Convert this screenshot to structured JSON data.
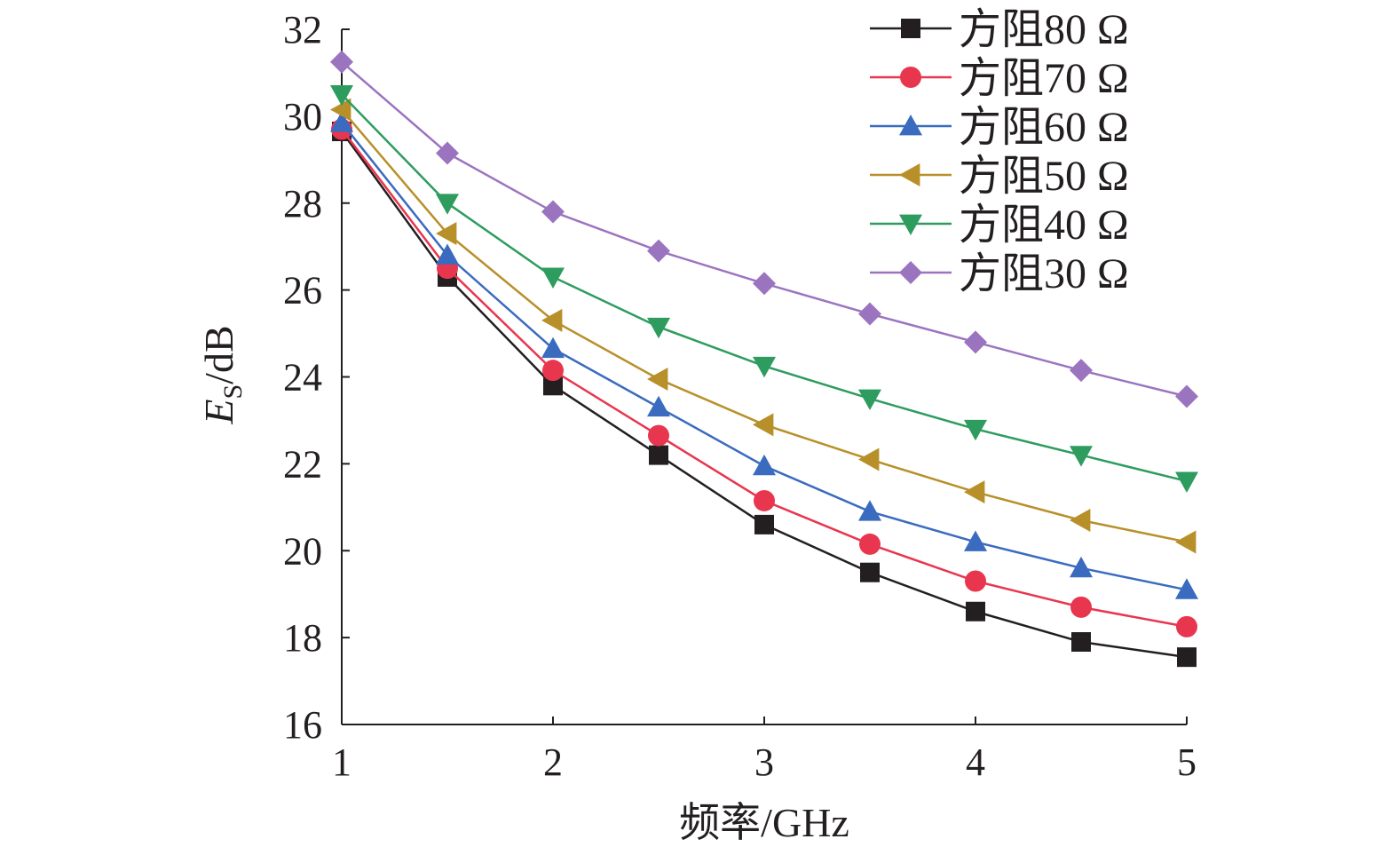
{
  "chart_data": {
    "type": "line",
    "xlabel": "频率/GHz",
    "ylabel": {
      "main": "E",
      "sub": "S",
      "rest": "/dB"
    },
    "xlim": [
      1,
      5
    ],
    "ylim": [
      16,
      32
    ],
    "xticks": [
      1,
      2,
      3,
      4,
      5
    ],
    "yticks": [
      16,
      18,
      20,
      22,
      24,
      26,
      28,
      30,
      32
    ],
    "grid": false,
    "legend_position": "top-right",
    "x": [
      1,
      1.5,
      2,
      2.5,
      3,
      3.5,
      4,
      4.5,
      5
    ],
    "series": [
      {
        "name": "方阻80 Ω",
        "color": "#231f20",
        "marker": "square",
        "values": [
          29.65,
          26.3,
          23.8,
          22.2,
          20.6,
          19.5,
          18.6,
          17.9,
          17.55
        ]
      },
      {
        "name": "方阻70 Ω",
        "color": "#e8364f",
        "marker": "circle",
        "values": [
          29.7,
          26.5,
          24.15,
          22.65,
          21.15,
          20.15,
          19.3,
          18.7,
          18.25
        ]
      },
      {
        "name": "方阻60 Ω",
        "color": "#3b6bbf",
        "marker": "triangle-up",
        "values": [
          29.85,
          26.8,
          24.65,
          23.3,
          21.95,
          20.9,
          20.2,
          19.6,
          19.1
        ]
      },
      {
        "name": "方阻50 Ω",
        "color": "#b8902a",
        "marker": "triangle-left",
        "values": [
          30.15,
          27.3,
          25.3,
          23.95,
          22.9,
          22.1,
          21.35,
          20.7,
          20.2
        ]
      },
      {
        "name": "方阻40 Ω",
        "color": "#2e9c5f",
        "marker": "triangle-down",
        "values": [
          30.5,
          28.0,
          26.3,
          25.15,
          24.25,
          23.5,
          22.8,
          22.2,
          21.6
        ]
      },
      {
        "name": "方阻30 Ω",
        "color": "#9b74c0",
        "marker": "diamond",
        "values": [
          31.25,
          29.15,
          27.8,
          26.9,
          26.15,
          25.45,
          24.8,
          24.15,
          23.55
        ]
      }
    ]
  }
}
